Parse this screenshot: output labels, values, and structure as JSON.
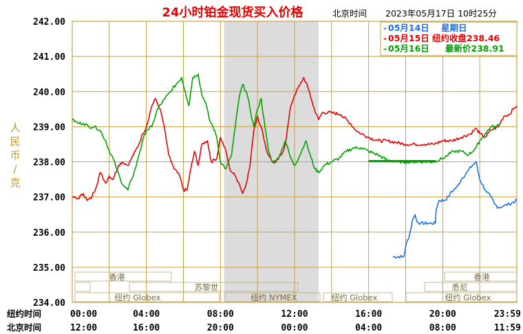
{
  "header": {
    "title": "24小时铂金现货买入价格",
    "location": "北京时间",
    "datetime": "2023年05月17日 10时25分"
  },
  "legend": [
    {
      "label": "05月14日",
      "info": "星期日",
      "color": "#1a6fe8"
    },
    {
      "label": "05月15日",
      "info": "纽约收盘238.46",
      "color": "#e60000"
    },
    {
      "label": "05月16日",
      "info": "最新价238.91",
      "color": "#00a000"
    }
  ],
  "axes": {
    "ylabel_chars": [
      "人",
      "民",
      "币",
      "/",
      "克"
    ],
    "row1_label": "纽约时间",
    "row2_label": "北京时间",
    "ny_ticks": [
      "00:00",
      "04:00",
      "08:00",
      "12:00",
      "16:00",
      "20:00",
      "23:59"
    ],
    "bj_ticks": [
      "12:00",
      "16:00",
      "20:00",
      "00:00",
      "04:00",
      "08:00",
      "11:59"
    ]
  },
  "sessions": {
    "top": [
      "香港",
      "香港"
    ],
    "middle": [
      "苏黎世",
      "悉尼"
    ],
    "bottom": [
      "纽约 Globex",
      "纽约 NYMEX",
      "纽约 Globex",
      "纽约 Globex"
    ]
  },
  "colors": {
    "grid": "#c8a03c",
    "shade": "#dcdcdc",
    "axis_text": "#000000",
    "title": "#e60000"
  },
  "chart_data": {
    "type": "line",
    "x_unit": "hours (New York time)",
    "xlim": [
      0,
      24
    ],
    "ylim": [
      234,
      242
    ],
    "yticks": [
      234,
      235,
      236,
      237,
      238,
      239,
      240,
      241,
      242
    ],
    "ytick_labels": [
      "234.00",
      "235.00",
      "236.00",
      "237.00",
      "238.00",
      "239.00",
      "240.00",
      "241.00",
      "242.00"
    ],
    "grid": true,
    "legend_position": "top-right",
    "shaded_x_range": [
      8.2,
      13.3
    ],
    "series": [
      {
        "name": "05月14日",
        "color": "#1a6fe8",
        "x": [
          17.3,
          17.9,
          18.05,
          18.2,
          18.4,
          18.5,
          18.6,
          18.8,
          19.2,
          19.6,
          19.65,
          19.8,
          20.1,
          20.3,
          20.4,
          20.6,
          20.8,
          21.0,
          21.3,
          21.6,
          21.8,
          22.0,
          22.3,
          22.6,
          22.8,
          23.0,
          23.3,
          23.6,
          24.0
        ],
        "y": [
          235.3,
          235.3,
          235.7,
          235.9,
          236.4,
          236.5,
          236.3,
          236.25,
          236.25,
          236.25,
          236.65,
          236.9,
          236.9,
          237.0,
          237.1,
          237.2,
          237.3,
          237.5,
          237.7,
          237.9,
          238.0,
          237.5,
          237.2,
          237.0,
          236.8,
          236.7,
          236.75,
          236.8,
          236.9
        ]
      },
      {
        "name": "05月15日",
        "color": "#e60000",
        "x": [
          0,
          0.3,
          0.6,
          0.8,
          1.0,
          1.3,
          1.5,
          1.8,
          2.0,
          2.2,
          2.5,
          2.7,
          3.0,
          3.2,
          3.4,
          3.6,
          3.8,
          4.0,
          4.3,
          4.5,
          4.8,
          5.0,
          5.2,
          5.5,
          5.8,
          6.0,
          6.2,
          6.4,
          6.6,
          6.8,
          7.0,
          7.3,
          7.5,
          7.8,
          8.0,
          8.3,
          8.5,
          8.8,
          9.0,
          9.2,
          9.4,
          9.6,
          9.8,
          10.0,
          10.3,
          10.5,
          10.8,
          11.0,
          11.3,
          11.5,
          11.8,
          12.0,
          12.3,
          12.5,
          12.8,
          13.0,
          13.3,
          13.5,
          14.0,
          14.5,
          15.0,
          15.3,
          15.6,
          16.0,
          16.5,
          17.0,
          17.5,
          18.0,
          18.5,
          19.0,
          19.5,
          20.0,
          20.5,
          21.0,
          21.5,
          21.8,
          22.0,
          22.3,
          22.6,
          23.0,
          23.3,
          23.6,
          23.8,
          24.0
        ],
        "y": [
          237.0,
          236.95,
          237.1,
          236.9,
          236.95,
          237.3,
          237.7,
          237.4,
          237.6,
          237.5,
          237.9,
          238.0,
          237.9,
          238.1,
          238.3,
          238.5,
          238.8,
          239.0,
          239.6,
          239.8,
          239.4,
          238.9,
          238.2,
          237.8,
          237.6,
          237.2,
          237.2,
          237.8,
          238.3,
          237.9,
          238.5,
          238.6,
          238.0,
          238.1,
          238.7,
          238.3,
          237.8,
          237.6,
          237.4,
          237.1,
          237.4,
          237.9,
          238.9,
          239.3,
          238.8,
          238.3,
          238.0,
          238.0,
          238.2,
          238.5,
          239.6,
          239.9,
          240.2,
          240.4,
          240.0,
          239.6,
          239.2,
          239.4,
          239.4,
          239.35,
          239.1,
          238.9,
          238.8,
          238.7,
          238.6,
          238.6,
          238.55,
          238.5,
          238.5,
          238.5,
          238.5,
          238.6,
          238.6,
          238.7,
          238.8,
          238.95,
          238.8,
          238.7,
          238.9,
          239.0,
          239.3,
          239.35,
          239.5,
          239.6
        ]
      },
      {
        "name": "05月16日",
        "color": "#00a000",
        "x": [
          0,
          0.3,
          0.6,
          0.9,
          1.2,
          1.5,
          1.8,
          2.0,
          2.2,
          2.4,
          2.6,
          2.8,
          3.0,
          3.2,
          3.4,
          3.6,
          3.8,
          4.0,
          4.3,
          4.6,
          5.0,
          5.3,
          5.6,
          5.9,
          6.1,
          6.3,
          6.5,
          6.8,
          7.0,
          7.2,
          7.4,
          7.6,
          7.8,
          8.0,
          8.3,
          8.6,
          8.8,
          9.0,
          9.2,
          9.4,
          9.6,
          9.8,
          10.0,
          10.2,
          10.4,
          10.6,
          10.8,
          11.0,
          11.2,
          11.5,
          11.8,
          12.0,
          12.3,
          12.6,
          12.9,
          13.1,
          13.3,
          13.6,
          14.0,
          14.4,
          14.8,
          15.2,
          15.6,
          16.0,
          16.5,
          17.0,
          17.5,
          18.0,
          18.5,
          19.0,
          19.5,
          20.0,
          20.3,
          20.6,
          21.0,
          21.4,
          21.8,
          22.0,
          22.3,
          22.6,
          22.9,
          23.1
        ],
        "y": [
          239.2,
          239.1,
          239.1,
          239.0,
          239.0,
          238.9,
          238.6,
          238.3,
          238.1,
          237.8,
          237.5,
          237.3,
          237.2,
          237.5,
          237.8,
          238.2,
          238.6,
          238.9,
          239.0,
          239.5,
          239.8,
          240.0,
          240.2,
          240.4,
          240.0,
          239.6,
          240.4,
          240.5,
          239.9,
          239.7,
          239.2,
          239.0,
          238.7,
          238.0,
          237.8,
          238.2,
          239.0,
          239.8,
          240.2,
          240.0,
          239.5,
          239.0,
          239.5,
          239.8,
          239.0,
          238.3,
          238.0,
          238.0,
          238.2,
          238.6,
          238.1,
          237.9,
          238.2,
          238.6,
          238.1,
          237.8,
          237.7,
          237.9,
          238.0,
          238.1,
          238.3,
          238.4,
          238.4,
          238.3,
          238.2,
          238.05,
          238.0,
          238.0,
          238.0,
          238.0,
          238.0,
          238.1,
          238.2,
          238.3,
          238.3,
          238.2,
          238.4,
          238.6,
          238.8,
          239.0,
          239.0,
          239.1
        ]
      }
    ]
  }
}
